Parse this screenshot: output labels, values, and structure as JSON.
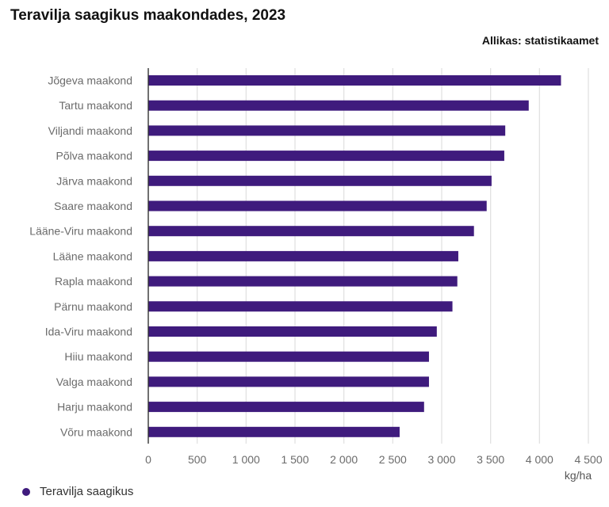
{
  "chart_data": {
    "type": "bar",
    "orientation": "horizontal",
    "title": "Teravilja saagikus maakondades, 2023",
    "source": "Allikas: statistikaamet",
    "xlabel": "kg/ha",
    "xlim": [
      0,
      4500
    ],
    "ticks": [
      0,
      500,
      1000,
      1500,
      2000,
      2500,
      3000,
      3500,
      4000,
      4500
    ],
    "tick_labels": [
      "0",
      "500",
      "1 000",
      "1 500",
      "2 000",
      "2 500",
      "3 000",
      "3 500",
      "4 000",
      "4 500"
    ],
    "grid": true,
    "legend_position": "bottom-left",
    "bar_color": "#3f1b7d",
    "categories": [
      "Jõgeva maakond",
      "Tartu maakond",
      "Viljandi maakond",
      "Põlva maakond",
      "Järva maakond",
      "Saare maakond",
      "Lääne-Viru maakond",
      "Lääne maakond",
      "Rapla maakond",
      "Pärnu maakond",
      "Ida-Viru maakond",
      "Hiiu maakond",
      "Valga maakond",
      "Harju maakond",
      "Võru maakond"
    ],
    "series": [
      {
        "name": "Teravilja saagikus",
        "values": [
          4220,
          3890,
          3650,
          3640,
          3510,
          3460,
          3330,
          3170,
          3160,
          3110,
          2950,
          2870,
          2870,
          2820,
          2570
        ]
      }
    ]
  }
}
